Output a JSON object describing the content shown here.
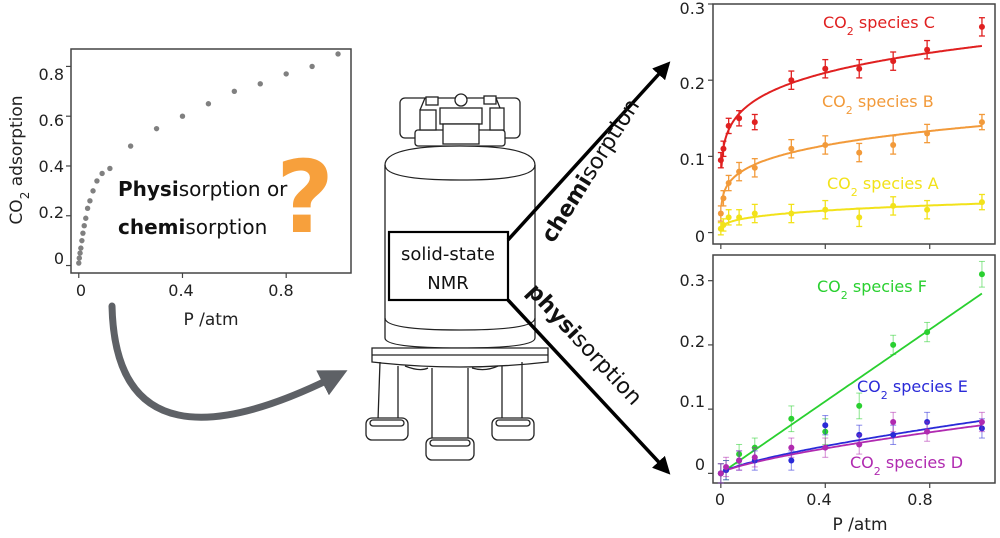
{
  "colors": {
    "species_a": "#f2e21a",
    "species_b": "#f29a3a",
    "species_c": "#e02020",
    "species_d": "#b02ab0",
    "species_e": "#2a2ad8",
    "species_f": "#2ad030",
    "question_mark": "#f7a03c",
    "isotherm_points": "#808080",
    "curved_arrow": "#5e6166"
  },
  "isotherm": {
    "xlabel": "P /atm",
    "ylabel_main": "CO",
    "ylabel_sub": "2",
    "ylabel_rest": " adsorption",
    "x_ticks": [
      "0",
      "0.4",
      "0.8"
    ],
    "y_ticks": [
      "0",
      "0.2",
      "0.4",
      "0.6",
      "0.8"
    ],
    "question_line1_bold": "Physi",
    "question_line1_rest": "sorption or",
    "question_line2_bold": "chemi",
    "question_line2_rest": "sorption",
    "question_mark": "?"
  },
  "nmr": {
    "icon": "nmr-magnet-icon",
    "label_line1": "solid-state",
    "label_line2": "NMR"
  },
  "arrows": {
    "chemi_bold": "chemi",
    "chemi_rest": "sorption",
    "physi_bold": "physi",
    "physi_rest": "sorption"
  },
  "chemi_panel": {
    "y_ticks": [
      "0",
      "0.1",
      "0.2",
      "0.3"
    ],
    "species": [
      {
        "prefix": "CO",
        "sub": "2",
        "suffix": " species C"
      },
      {
        "prefix": "CO",
        "sub": "2",
        "suffix": " species B"
      },
      {
        "prefix": "CO",
        "sub": "2",
        "suffix": " species A"
      }
    ]
  },
  "physi_panel": {
    "xlabel": "P /atm",
    "x_ticks": [
      "0",
      "0.4",
      "0.8"
    ],
    "y_ticks": [
      "0",
      "0.1",
      "0.2",
      "0.3"
    ],
    "species": [
      {
        "prefix": "CO",
        "sub": "2",
        "suffix": " species F"
      },
      {
        "prefix": "CO",
        "sub": "2",
        "suffix": " species E"
      },
      {
        "prefix": "CO",
        "sub": "2",
        "suffix": " species D"
      }
    ]
  },
  "chart_data": [
    {
      "type": "scatter",
      "xlabel": "P /atm",
      "ylabel": "CO2 adsorption",
      "xlim": [
        -0.03,
        1.05
      ],
      "ylim": [
        -0.03,
        0.87
      ],
      "series": [
        {
          "x": [
            0.0,
            0.002,
            0.005,
            0.008,
            0.012,
            0.016,
            0.021,
            0.027,
            0.034,
            0.043,
            0.055,
            0.07,
            0.09,
            0.12,
            0.2,
            0.3,
            0.4,
            0.5,
            0.6,
            0.7,
            0.8,
            0.9,
            1.0
          ],
          "y": [
            0.01,
            0.03,
            0.05,
            0.07,
            0.1,
            0.13,
            0.16,
            0.19,
            0.23,
            0.26,
            0.3,
            0.34,
            0.37,
            0.39,
            0.48,
            0.55,
            0.6,
            0.65,
            0.7,
            0.73,
            0.77,
            0.8,
            0.85
          ]
        }
      ]
    },
    {
      "type": "scatter",
      "xlim": [
        -0.03,
        1.05
      ],
      "ylim": [
        -0.015,
        0.3
      ],
      "series": [
        {
          "name": "CO2 species C",
          "x": [
            0.0,
            0.01,
            0.03,
            0.07,
            0.13,
            0.27,
            0.4,
            0.53,
            0.66,
            0.79,
            1.0
          ],
          "y": [
            0.095,
            0.11,
            0.14,
            0.15,
            0.145,
            0.2,
            0.215,
            0.215,
            0.225,
            0.24,
            0.27
          ],
          "err": [
            0.01,
            0.01,
            0.01,
            0.01,
            0.01,
            0.012,
            0.012,
            0.012,
            0.012,
            0.012,
            0.012
          ]
        },
        {
          "name": "CO2 species B",
          "x": [
            0.0,
            0.01,
            0.03,
            0.07,
            0.13,
            0.27,
            0.4,
            0.53,
            0.66,
            0.79,
            1.0
          ],
          "y": [
            0.025,
            0.045,
            0.065,
            0.08,
            0.085,
            0.11,
            0.115,
            0.105,
            0.115,
            0.13,
            0.145
          ],
          "err": [
            0.01,
            0.01,
            0.01,
            0.012,
            0.012,
            0.012,
            0.012,
            0.012,
            0.012,
            0.012,
            0.01
          ]
        },
        {
          "name": "CO2 species A",
          "x": [
            0.0,
            0.01,
            0.03,
            0.07,
            0.13,
            0.27,
            0.4,
            0.53,
            0.66,
            0.79,
            1.0
          ],
          "y": [
            0.005,
            0.01,
            0.02,
            0.02,
            0.025,
            0.025,
            0.03,
            0.02,
            0.035,
            0.03,
            0.04
          ],
          "err": [
            0.008,
            0.008,
            0.01,
            0.01,
            0.012,
            0.012,
            0.012,
            0.012,
            0.012,
            0.012,
            0.01
          ]
        }
      ]
    },
    {
      "type": "scatter",
      "xlabel": "P /atm",
      "xlim": [
        -0.03,
        1.05
      ],
      "ylim": [
        -0.015,
        0.34
      ],
      "series": [
        {
          "name": "CO2 species F",
          "x": [
            0.0,
            0.02,
            0.07,
            0.13,
            0.27,
            0.4,
            0.53,
            0.66,
            0.79,
            1.0
          ],
          "y": [
            0.0,
            0.005,
            0.03,
            0.04,
            0.085,
            0.065,
            0.105,
            0.2,
            0.22,
            0.31
          ],
          "err": [
            0.015,
            0.015,
            0.015,
            0.015,
            0.02,
            0.02,
            0.02,
            0.015,
            0.015,
            0.02
          ]
        },
        {
          "name": "CO2 species E",
          "x": [
            0.0,
            0.02,
            0.07,
            0.13,
            0.27,
            0.4,
            0.53,
            0.66,
            0.79,
            1.0
          ],
          "y": [
            0.0,
            0.005,
            0.02,
            0.02,
            0.02,
            0.075,
            0.06,
            0.06,
            0.08,
            0.07
          ],
          "err": [
            0.015,
            0.015,
            0.015,
            0.015,
            0.015,
            0.015,
            0.015,
            0.015,
            0.015,
            0.015
          ]
        },
        {
          "name": "CO2 species D",
          "x": [
            0.0,
            0.02,
            0.07,
            0.13,
            0.27,
            0.4,
            0.53,
            0.66,
            0.79,
            1.0
          ],
          "y": [
            0.0,
            0.01,
            0.02,
            0.025,
            0.04,
            0.04,
            0.045,
            0.08,
            0.065,
            0.08
          ],
          "err": [
            0.015,
            0.015,
            0.015,
            0.015,
            0.015,
            0.015,
            0.015,
            0.015,
            0.015,
            0.015
          ]
        }
      ]
    }
  ]
}
